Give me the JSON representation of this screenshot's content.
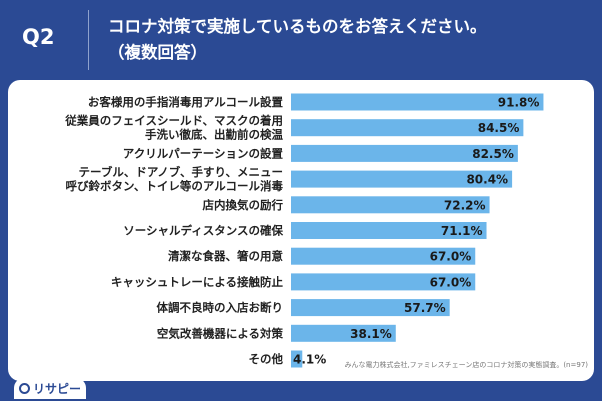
{
  "header": {
    "question_label": "Q2",
    "title_line1": "コロナ対策で実施しているものをお答えください。",
    "title_line2": "（複数回答）"
  },
  "source_note": "みんな電力株式会社,ファミレスチェーン店のコロナ対策の実態調査。(n=97)",
  "logo": {
    "text": "リサピー"
  },
  "colors": {
    "header_bg": "#2b4a94",
    "bar": "#6bb5ea"
  },
  "chart_data": {
    "type": "bar",
    "orientation": "horizontal",
    "categories": [
      [
        "お客様用の手指消毒用アルコール設置"
      ],
      [
        "従業員のフェイスシールド、マスクの着用",
        "手洗い徹底、出勤前の検温"
      ],
      [
        "アクリルパーテーションの設置"
      ],
      [
        "テーブル、ドアノブ、手すり、メニュー",
        "呼び鈴ボタン、トイレ等のアルコール消毒"
      ],
      [
        "店内換気の励行"
      ],
      [
        "ソーシャルディスタンスの確保"
      ],
      [
        "清潔な食器、箸の用意"
      ],
      [
        "キャッシュトレーによる接触防止"
      ],
      [
        "体調不良時の入店お断り"
      ],
      [
        "空気改善機器による対策"
      ],
      [
        "その他"
      ]
    ],
    "values": [
      91.8,
      84.5,
      82.5,
      80.4,
      72.2,
      71.1,
      67.0,
      67.0,
      57.7,
      38.1,
      4.1
    ],
    "value_labels": [
      "91.8%",
      "84.5%",
      "82.5%",
      "80.4%",
      "72.2%",
      "71.1%",
      "67.0%",
      "67.0%",
      "57.7%",
      "38.1%",
      "4.1%"
    ],
    "xlim": [
      0,
      100
    ],
    "grid": false,
    "legend": "none"
  }
}
